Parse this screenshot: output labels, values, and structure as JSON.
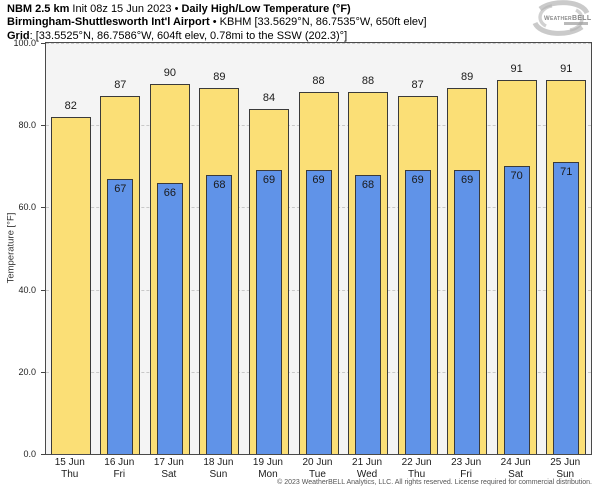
{
  "header": {
    "line1": {
      "model": "NBM 2.5 km",
      "init": "Init 08z 15 Jun 2023",
      "sep": "•",
      "product": "Daily High/Low Temperature (°F)"
    },
    "line2": {
      "station": "Birmingham-Shuttlesworth Int'l Airport",
      "sep": "•",
      "meta": "KBHM [33.5629°N, 86.7535°W, 650ft elev]"
    },
    "line3": {
      "label": "Grid",
      "meta": ": [33.5525°N, 86.7586°W, 604ft elev, 0.78mi to the SSW (202.3)°]"
    }
  },
  "logo": {
    "text_small": "Weather",
    "text_big": "BELL",
    "subtext": "Analytics LLC"
  },
  "chart_data": {
    "type": "bar",
    "title": "NBM 2.5 km Daily High/Low Temperature (°F) — Birmingham-Shuttlesworth Int'l Airport (KBHM)",
    "ylabel": "Temperature [°F]",
    "ylim": [
      0,
      100
    ],
    "yticks": [
      0,
      20,
      40,
      60,
      80,
      100
    ],
    "ytick_labels": [
      "0.0",
      "20.0",
      "40.0",
      "60.0",
      "80.0",
      "100.0"
    ],
    "grid": "horizontal-dashed",
    "legend": "none",
    "categories": [
      "15 Jun Thu",
      "16 Jun Fri",
      "17 Jun Sat",
      "18 Jun Sun",
      "19 Jun Mon",
      "20 Jun Tue",
      "21 Jun Wed",
      "22 Jun Thu",
      "23 Jun Fri",
      "24 Jun Sat",
      "25 Jun Sun"
    ],
    "days": [
      {
        "date": "15 Jun",
        "weekday": "Thu",
        "high": 82,
        "low": null
      },
      {
        "date": "16 Jun",
        "weekday": "Fri",
        "high": 87,
        "low": 67
      },
      {
        "date": "17 Jun",
        "weekday": "Sat",
        "high": 90,
        "low": 66
      },
      {
        "date": "18 Jun",
        "weekday": "Sun",
        "high": 89,
        "low": 68
      },
      {
        "date": "19 Jun",
        "weekday": "Mon",
        "high": 84,
        "low": 69
      },
      {
        "date": "20 Jun",
        "weekday": "Tue",
        "high": 88,
        "low": 69
      },
      {
        "date": "21 Jun",
        "weekday": "Wed",
        "high": 88,
        "low": 68
      },
      {
        "date": "22 Jun",
        "weekday": "Thu",
        "high": 87,
        "low": 69
      },
      {
        "date": "23 Jun",
        "weekday": "Fri",
        "high": 89,
        "low": 69
      },
      {
        "date": "24 Jun",
        "weekday": "Sat",
        "high": 91,
        "low": 70
      },
      {
        "date": "25 Jun",
        "weekday": "Sun",
        "high": 91,
        "low": 71
      }
    ],
    "series": [
      {
        "name": "High",
        "color": "#FBDF76",
        "values": [
          82,
          87,
          90,
          89,
          84,
          88,
          88,
          87,
          89,
          91,
          91
        ]
      },
      {
        "name": "Low",
        "color": "#6093E8",
        "values": [
          null,
          67,
          66,
          68,
          69,
          69,
          68,
          69,
          69,
          70,
          71
        ]
      }
    ]
  },
  "colors": {
    "high_bar": "#FBDF76",
    "low_bar": "#6093E8",
    "bar_border": "#3a3a3a",
    "plot_bg": "#f4f4f4",
    "grid_line": "#c9c9c9",
    "axis": "#444444",
    "label_text": "#1a1a1a",
    "footer_text": "#555555",
    "logo_gray": "#a5a5a5"
  },
  "footer": {
    "copyright": "© 2023 WeatherBELL Analytics, LLC. All rights reserved. License required for commercial distribution."
  }
}
